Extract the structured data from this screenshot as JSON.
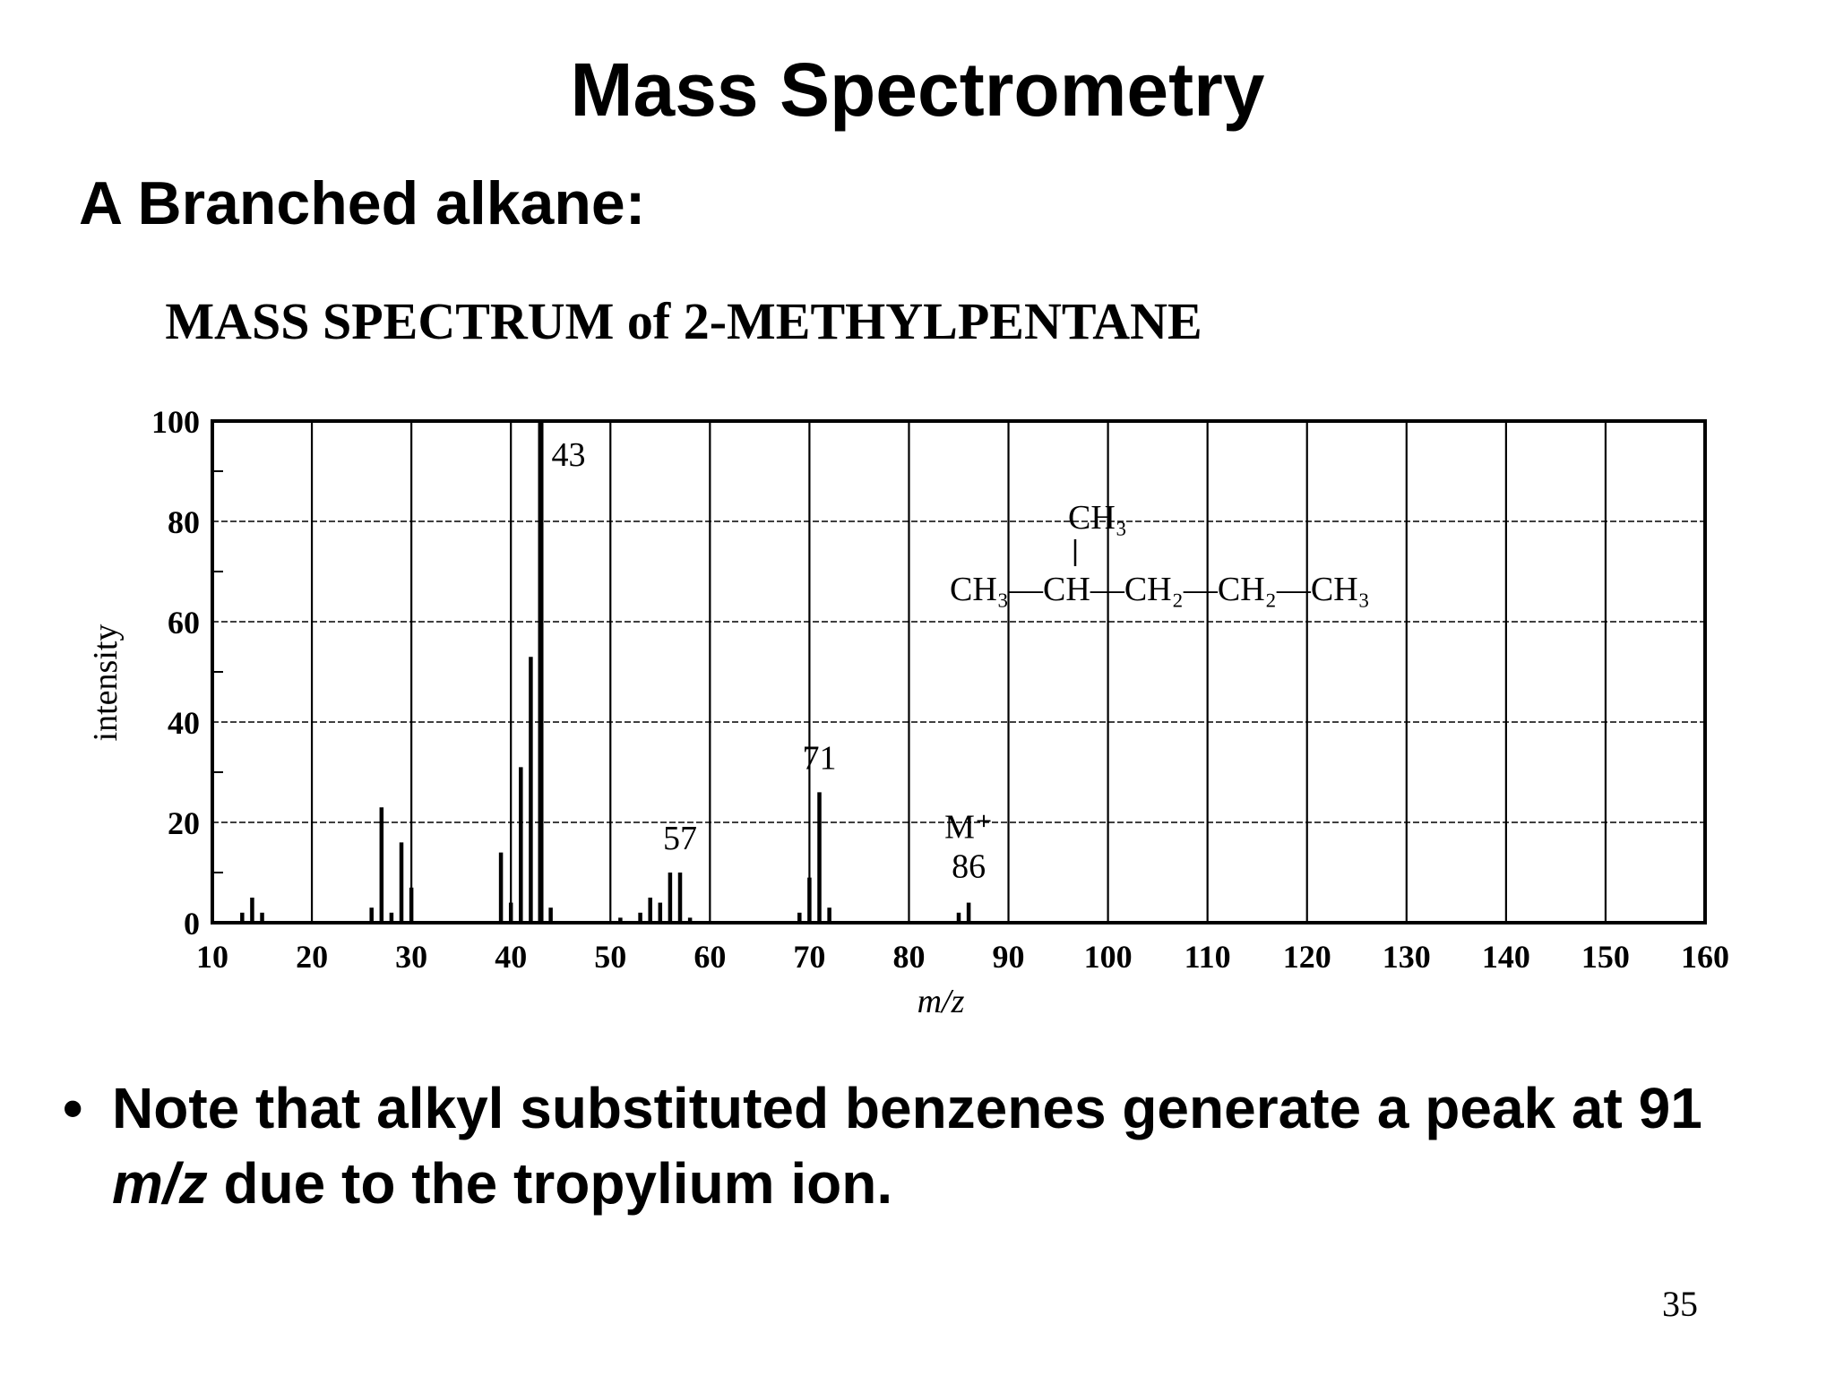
{
  "slide": {
    "title": "Mass Spectrometry",
    "subtitle": "A Branched alkane:",
    "bullet_symbol": "•",
    "bullet_part1": "Note that alkyl substituted benzenes generate a peak at 91 ",
    "bullet_italic": "m/z",
    "bullet_part2": " due to the tropylium ion.",
    "page_number": "35"
  },
  "chart_data": {
    "type": "bar",
    "title": "MASS SPECTRUM of 2-METHYLPENTANE",
    "xlabel": "m/z",
    "ylabel": "intensity",
    "xlim": [
      10,
      160
    ],
    "ylim": [
      0,
      100
    ],
    "x_ticks": [
      10,
      20,
      30,
      40,
      50,
      60,
      70,
      80,
      90,
      100,
      110,
      120,
      130,
      140,
      150,
      160
    ],
    "y_ticks": [
      0,
      20,
      40,
      60,
      80,
      100
    ],
    "grid": true,
    "series": [
      {
        "x": [
          13,
          14,
          15,
          26,
          27,
          28,
          29,
          30,
          39,
          40,
          41,
          42,
          43,
          44,
          51,
          53,
          54,
          55,
          56,
          57,
          58,
          69,
          70,
          71,
          72,
          85,
          86
        ],
        "values": [
          2,
          5,
          2,
          3,
          23,
          2,
          16,
          7,
          14,
          4,
          31,
          53,
          100,
          3,
          1,
          2,
          5,
          4,
          10,
          10,
          1,
          2,
          9,
          26,
          3,
          2,
          4
        ]
      }
    ],
    "annotations": [
      {
        "x": 43,
        "text": "43"
      },
      {
        "x": 57,
        "text": "57"
      },
      {
        "x": 71,
        "text": "71"
      },
      {
        "x": 86,
        "text": "86",
        "label": "M⁺"
      }
    ],
    "structure": {
      "branch": "CH₃",
      "chain": "CH₃—CH—CH₂—CH₂—CH₃"
    }
  }
}
